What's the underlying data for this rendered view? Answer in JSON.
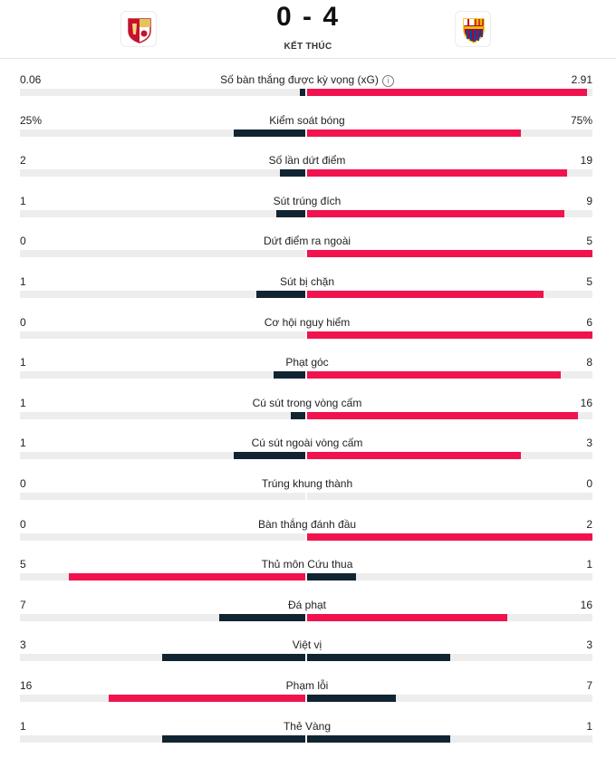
{
  "match": {
    "score": "0 - 4",
    "status": "KẾT THÚC",
    "home_crest": "home-team-crest",
    "away_crest": "away-team-crest"
  },
  "colors": {
    "leader": "#f0134d",
    "trailer": "#112431",
    "track": "#ededed"
  },
  "stats": [
    {
      "label": "Số bàn thắng được kỳ vọng (xG)",
      "home": "0.06",
      "away": "2.91",
      "info_icon": "ⓘ",
      "home_fraction": 0.02,
      "away_fraction": 0.98
    },
    {
      "label": "Kiểm soát bóng",
      "home": "25%",
      "away": "75%",
      "home_fraction": 0.25,
      "away_fraction": 0.75
    },
    {
      "label": "Số lần dứt điểm",
      "home": "2",
      "away": "19",
      "home_fraction": 0.09,
      "away_fraction": 0.91
    },
    {
      "label": "Sút trúng đích",
      "home": "1",
      "away": "9",
      "home_fraction": 0.1,
      "away_fraction": 0.9
    },
    {
      "label": "Dứt điểm ra ngoài",
      "home": "0",
      "away": "5",
      "home_fraction": 0,
      "away_fraction": 1
    },
    {
      "label": "Sút bị chặn",
      "home": "1",
      "away": "5",
      "home_fraction": 0.17,
      "away_fraction": 0.83
    },
    {
      "label": "Cơ hội nguy hiểm",
      "home": "0",
      "away": "6",
      "home_fraction": 0,
      "away_fraction": 1
    },
    {
      "label": "Phạt góc",
      "home": "1",
      "away": "8",
      "home_fraction": 0.11,
      "away_fraction": 0.89
    },
    {
      "label": "Cú sút trong vòng cấm",
      "home": "1",
      "away": "16",
      "home_fraction": 0.05,
      "away_fraction": 0.95
    },
    {
      "label": "Cú sút ngoài vòng cấm",
      "home": "1",
      "away": "3",
      "home_fraction": 0.25,
      "away_fraction": 0.75
    },
    {
      "label": "Trúng khung thành",
      "home": "0",
      "away": "0",
      "home_fraction": 0,
      "away_fraction": 0
    },
    {
      "label": "Bàn thắng đánh đầu",
      "home": "0",
      "away": "2",
      "home_fraction": 0,
      "away_fraction": 1
    },
    {
      "label": "Thủ môn Cứu thua",
      "home": "5",
      "away": "1",
      "home_fraction": 0.83,
      "away_fraction": 0.17
    },
    {
      "label": "Đá phạt",
      "home": "7",
      "away": "16",
      "home_fraction": 0.3,
      "away_fraction": 0.7
    },
    {
      "label": "Việt vị",
      "home": "3",
      "away": "3",
      "home_fraction": 0.5,
      "away_fraction": 0.5
    },
    {
      "label": "Phạm lỗi",
      "home": "16",
      "away": "7",
      "home_fraction": 0.69,
      "away_fraction": 0.31
    },
    {
      "label": "Thẻ Vàng",
      "home": "1",
      "away": "1",
      "home_fraction": 0.5,
      "away_fraction": 0.5
    }
  ]
}
